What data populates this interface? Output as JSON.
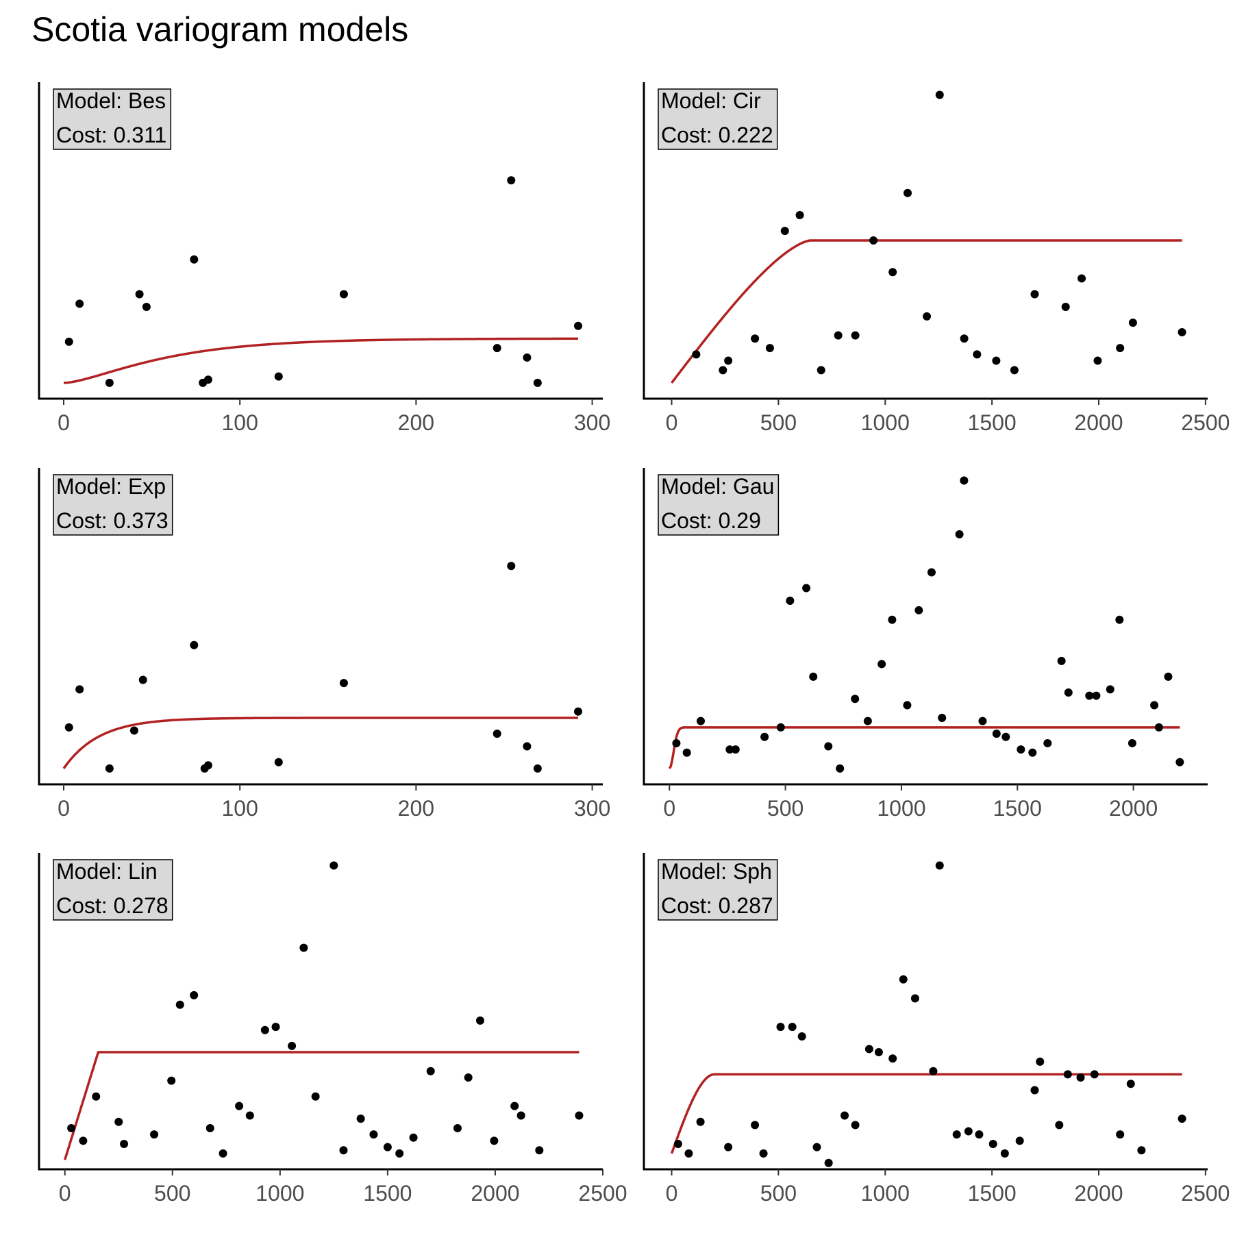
{
  "title": "Scotia variogram models",
  "colors": {
    "curve": "#b22222",
    "points": "#000000",
    "label_box_fill": "#d9d9d9",
    "tick_text": "#4d4d4d"
  },
  "chart_data": [
    {
      "type": "scatter",
      "model_label": "Model: Bes",
      "cost_label": "Cost: 0.311",
      "xlim": [
        -14,
        306
      ],
      "ylim": [
        0,
        100
      ],
      "xticks": [
        0,
        100,
        200,
        300
      ],
      "points": [
        [
          3,
          18
        ],
        [
          9,
          30
        ],
        [
          26,
          5
        ],
        [
          43,
          33
        ],
        [
          47,
          29
        ],
        [
          74,
          44
        ],
        [
          79,
          5
        ],
        [
          82,
          6
        ],
        [
          122,
          7
        ],
        [
          159,
          33
        ],
        [
          246,
          16
        ],
        [
          254,
          69
        ],
        [
          263,
          13
        ],
        [
          269,
          5
        ],
        [
          292,
          23
        ]
      ],
      "curve": {
        "kind": "bessel",
        "nugget": 5,
        "sill": 14,
        "range": 40,
        "x_max": 292
      }
    },
    {
      "type": "scatter",
      "model_label": "Model: Cir",
      "cost_label": "Cost: 0.222",
      "xlim": [
        -130,
        2510
      ],
      "ylim": [
        0,
        100
      ],
      "xticks": [
        0,
        500,
        1000,
        1500,
        2000,
        2500
      ],
      "points": [
        [
          115,
          14
        ],
        [
          240,
          9
        ],
        [
          265,
          12
        ],
        [
          390,
          19
        ],
        [
          460,
          16
        ],
        [
          530,
          53
        ],
        [
          600,
          58
        ],
        [
          700,
          9
        ],
        [
          780,
          20
        ],
        [
          860,
          20
        ],
        [
          945,
          50
        ],
        [
          1035,
          40
        ],
        [
          1105,
          65
        ],
        [
          1195,
          26
        ],
        [
          1255,
          96
        ],
        [
          1370,
          19
        ],
        [
          1430,
          14
        ],
        [
          1520,
          12
        ],
        [
          1605,
          9
        ],
        [
          1700,
          33
        ],
        [
          1845,
          29
        ],
        [
          1920,
          38
        ],
        [
          1995,
          12
        ],
        [
          2100,
          16
        ],
        [
          2160,
          24
        ],
        [
          2390,
          21
        ]
      ],
      "curve": {
        "kind": "circular",
        "nugget": 5,
        "sill": 45,
        "range": 650,
        "x_max": 2390
      }
    },
    {
      "type": "scatter",
      "model_label": "Model: Exp",
      "cost_label": "Cost: 0.373",
      "xlim": [
        -14,
        306
      ],
      "ylim": [
        0,
        100
      ],
      "xticks": [
        0,
        100,
        200,
        300
      ],
      "points": [
        [
          3,
          18
        ],
        [
          9,
          30
        ],
        [
          26,
          5
        ],
        [
          40,
          17
        ],
        [
          45,
          33
        ],
        [
          74,
          44
        ],
        [
          80,
          5
        ],
        [
          82,
          6
        ],
        [
          122,
          7
        ],
        [
          159,
          32
        ],
        [
          246,
          16
        ],
        [
          254,
          69
        ],
        [
          263,
          12
        ],
        [
          269,
          5
        ],
        [
          292,
          23
        ]
      ],
      "curve": {
        "kind": "exponential",
        "nugget": 5,
        "sill": 16,
        "range": 20,
        "x_max": 292
      }
    },
    {
      "type": "scatter",
      "model_label": "Model: Gau",
      "cost_label": "Cost: 0.29",
      "xlim": [
        -110,
        2320
      ],
      "ylim": [
        0,
        100
      ],
      "xticks": [
        0,
        500,
        1000,
        1500,
        2000
      ],
      "points": [
        [
          30,
          13
        ],
        [
          75,
          10
        ],
        [
          135,
          20
        ],
        [
          260,
          11
        ],
        [
          285,
          11
        ],
        [
          410,
          15
        ],
        [
          480,
          18
        ],
        [
          520,
          58
        ],
        [
          590,
          62
        ],
        [
          620,
          34
        ],
        [
          685,
          12
        ],
        [
          735,
          5
        ],
        [
          800,
          27
        ],
        [
          855,
          20
        ],
        [
          960,
          52
        ],
        [
          915,
          38
        ],
        [
          1025,
          25
        ],
        [
          1075,
          55
        ],
        [
          1130,
          67
        ],
        [
          1175,
          21
        ],
        [
          1250,
          79
        ],
        [
          1270,
          96
        ],
        [
          1350,
          20
        ],
        [
          1410,
          16
        ],
        [
          1450,
          15
        ],
        [
          1515,
          11
        ],
        [
          1565,
          10
        ],
        [
          1630,
          13
        ],
        [
          1690,
          39
        ],
        [
          1720,
          29
        ],
        [
          1810,
          28
        ],
        [
          1840,
          28
        ],
        [
          1900,
          30
        ],
        [
          1940,
          52
        ],
        [
          1995,
          13
        ],
        [
          2090,
          25
        ],
        [
          2110,
          18
        ],
        [
          2150,
          34
        ],
        [
          2200,
          7
        ]
      ],
      "curve": {
        "kind": "gaussian",
        "nugget": 5,
        "sill": 13,
        "range": 25,
        "x_max": 2200
      }
    },
    {
      "type": "scatter",
      "model_label": "Model: Lin",
      "cost_label": "Cost: 0.278",
      "xlim": [
        -120,
        2500
      ],
      "ylim": [
        0,
        100
      ],
      "xticks": [
        0,
        500,
        1000,
        1500,
        2000,
        2500
      ],
      "points": [
        [
          30,
          13
        ],
        [
          85,
          9
        ],
        [
          145,
          23
        ],
        [
          250,
          15
        ],
        [
          275,
          8
        ],
        [
          415,
          11
        ],
        [
          495,
          28
        ],
        [
          535,
          52
        ],
        [
          600,
          55
        ],
        [
          675,
          13
        ],
        [
          735,
          5
        ],
        [
          810,
          20
        ],
        [
          860,
          17
        ],
        [
          930,
          44
        ],
        [
          980,
          45
        ],
        [
          1055,
          39
        ],
        [
          1110,
          70
        ],
        [
          1165,
          23
        ],
        [
          1250,
          96
        ],
        [
          1295,
          6
        ],
        [
          1375,
          16
        ],
        [
          1435,
          11
        ],
        [
          1500,
          7
        ],
        [
          1555,
          5
        ],
        [
          1620,
          10
        ],
        [
          1700,
          31
        ],
        [
          1825,
          13
        ],
        [
          1875,
          29
        ],
        [
          1930,
          47
        ],
        [
          1995,
          9
        ],
        [
          2090,
          20
        ],
        [
          2120,
          17
        ],
        [
          2205,
          6
        ],
        [
          2390,
          17
        ]
      ],
      "curve": {
        "kind": "linear",
        "nugget": 3,
        "sill": 34,
        "range": 155,
        "x_max": 2390
      }
    },
    {
      "type": "scatter",
      "model_label": "Model: Sph",
      "cost_label": "Cost: 0.287",
      "xlim": [
        -130,
        2510
      ],
      "ylim": [
        0,
        100
      ],
      "xticks": [
        0,
        500,
        1000,
        1500,
        2000,
        2500
      ],
      "points": [
        [
          30,
          8
        ],
        [
          80,
          5
        ],
        [
          135,
          15
        ],
        [
          265,
          7
        ],
        [
          390,
          14
        ],
        [
          430,
          5
        ],
        [
          510,
          45
        ],
        [
          565,
          45
        ],
        [
          610,
          42
        ],
        [
          680,
          7
        ],
        [
          735,
          2
        ],
        [
          810,
          17
        ],
        [
          860,
          14
        ],
        [
          925,
          38
        ],
        [
          970,
          37
        ],
        [
          1035,
          35
        ],
        [
          1085,
          60
        ],
        [
          1140,
          54
        ],
        [
          1225,
          31
        ],
        [
          1255,
          96
        ],
        [
          1335,
          11
        ],
        [
          1390,
          12
        ],
        [
          1440,
          11
        ],
        [
          1505,
          8
        ],
        [
          1560,
          5
        ],
        [
          1630,
          9
        ],
        [
          1700,
          25
        ],
        [
          1725,
          34
        ],
        [
          1815,
          14
        ],
        [
          1855,
          30
        ],
        [
          1915,
          29
        ],
        [
          1980,
          30
        ],
        [
          2100,
          11
        ],
        [
          2150,
          27
        ],
        [
          2200,
          6
        ],
        [
          2390,
          16
        ]
      ],
      "curve": {
        "kind": "spherical",
        "nugget": 5,
        "sill": 25,
        "range": 200,
        "x_max": 2390
      }
    }
  ]
}
